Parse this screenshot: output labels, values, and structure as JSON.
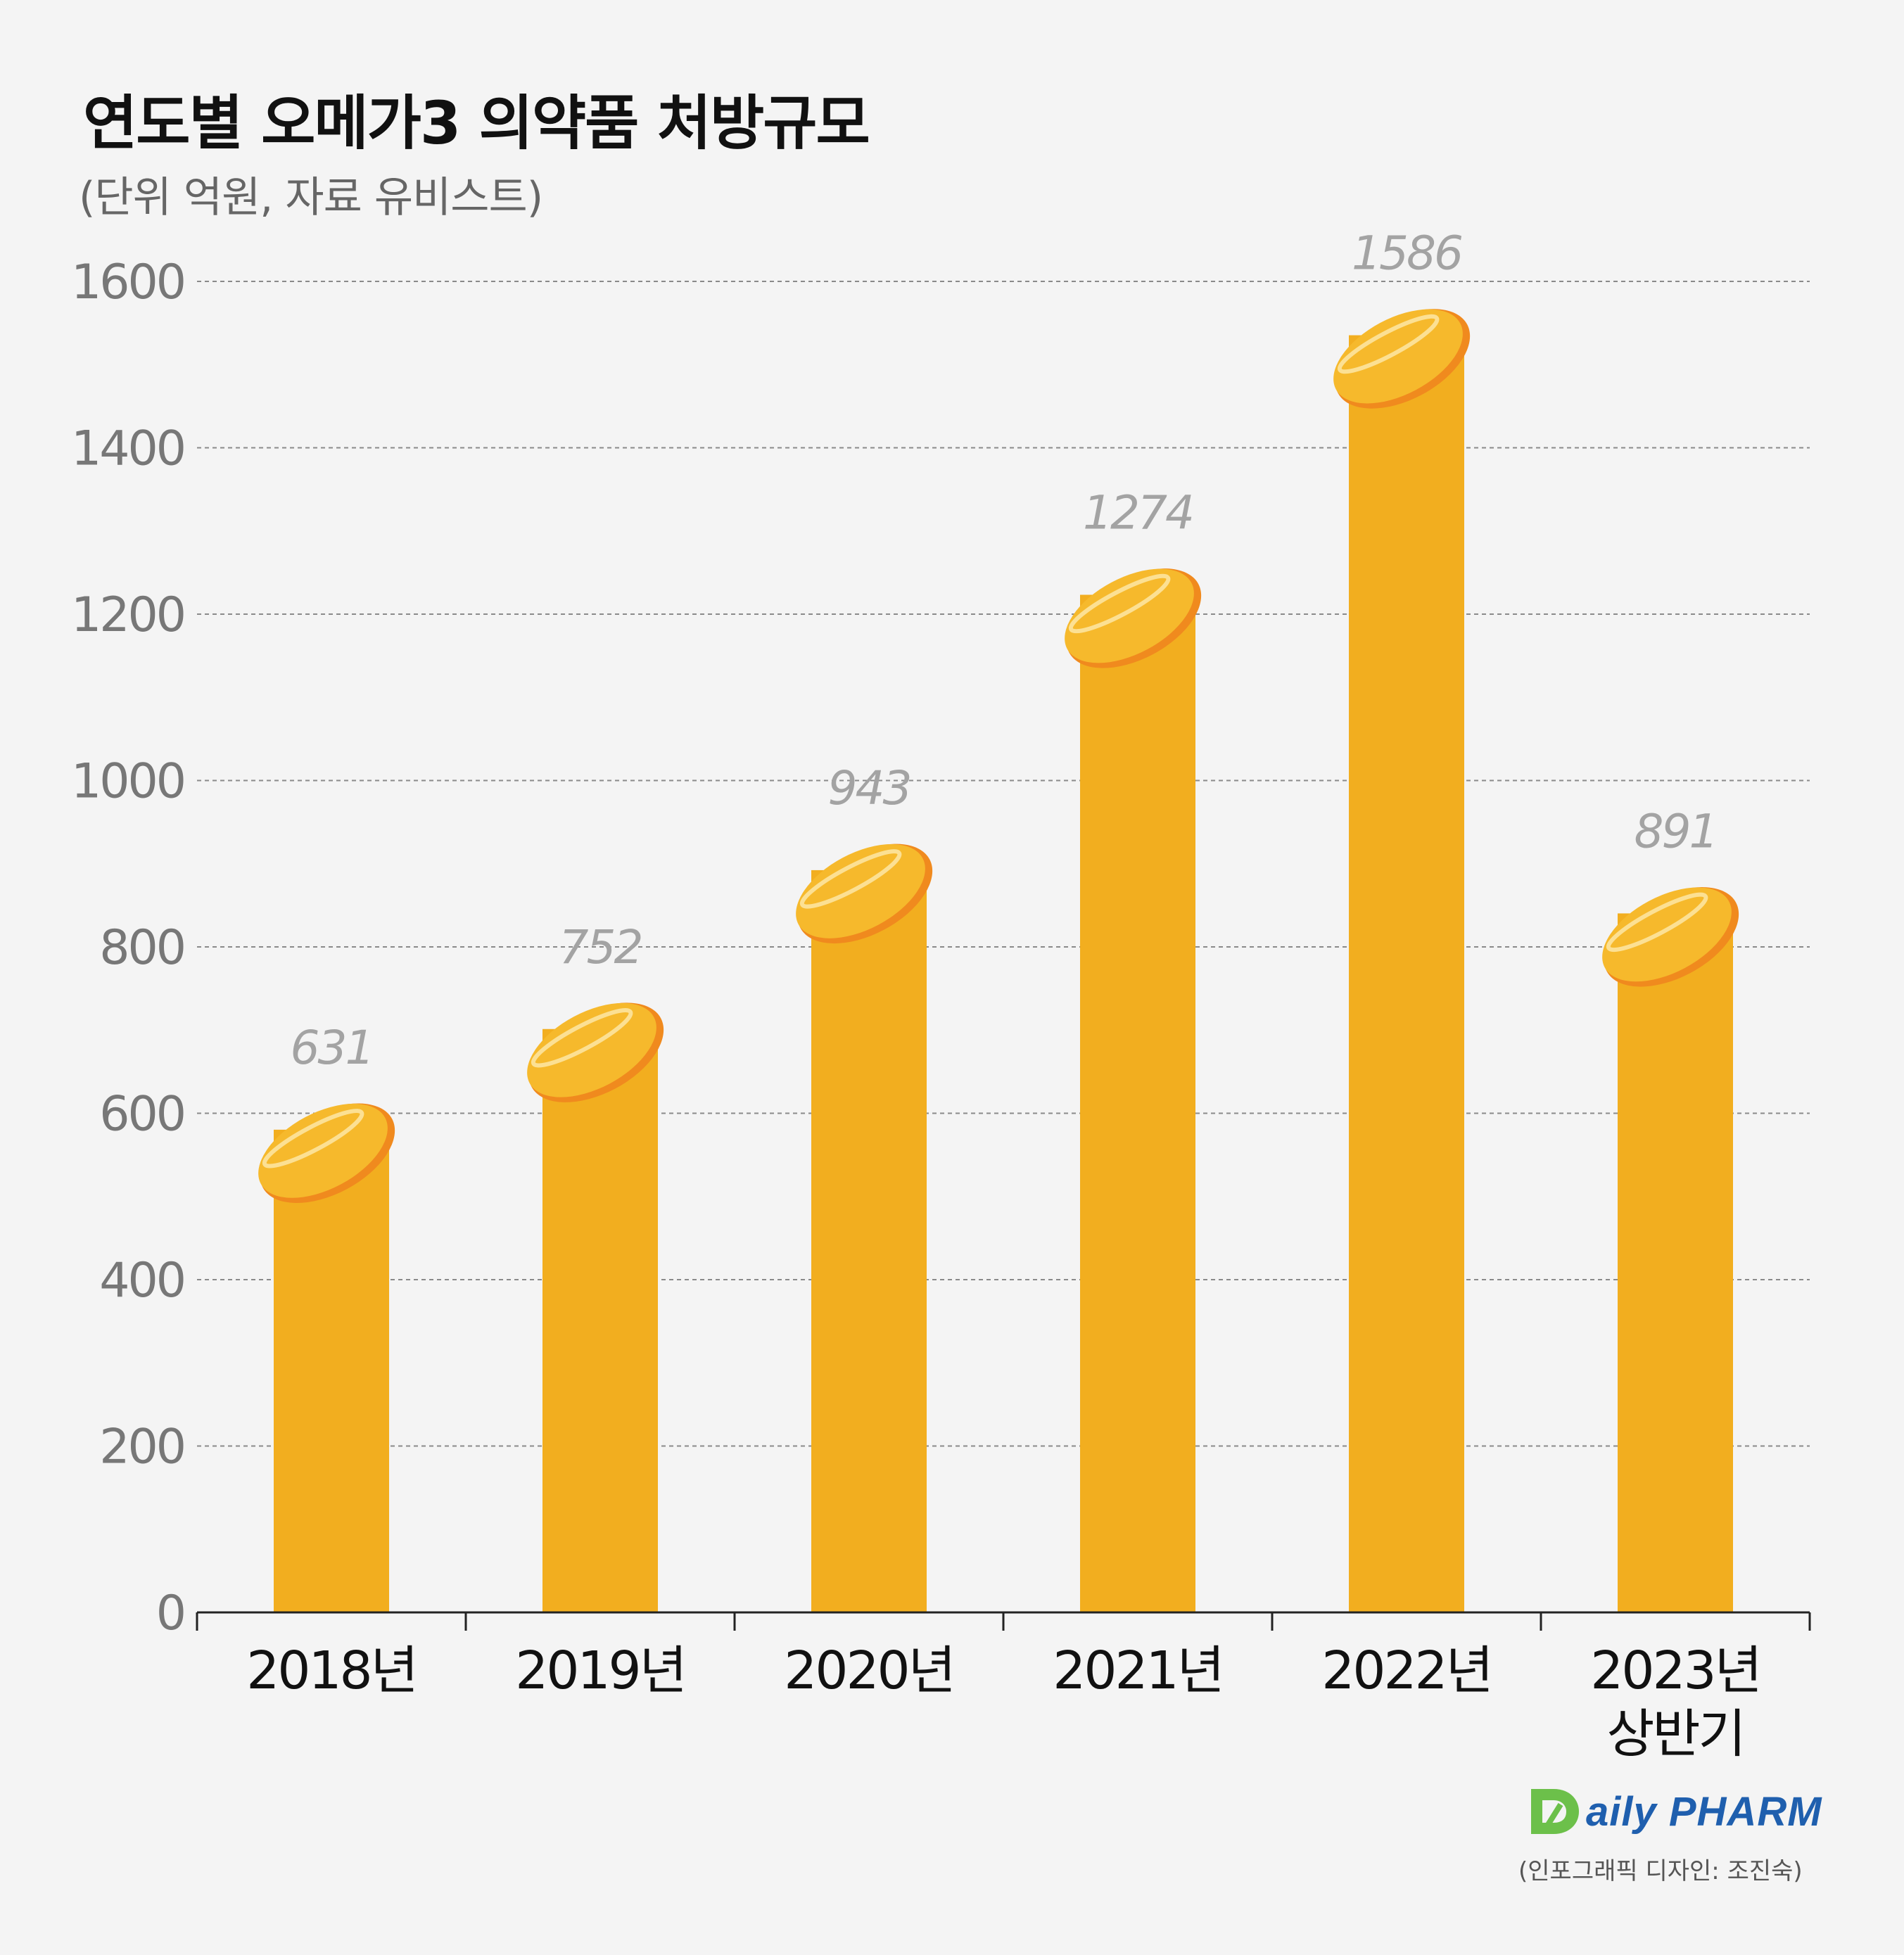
{
  "title": "연도별 오메가3 의약품 처방규모",
  "subtitle": "(단위 억원, 자료 유비스트)",
  "logo": {
    "text": "aily PHARM",
    "brand": "Daily PHARM"
  },
  "credit": "(인포그래픽 디자인: 조진숙)",
  "colors": {
    "bar": "#f2ae1f",
    "capsule": "#f6b92c",
    "capsule_rim": "#f08a1e",
    "capsule_highlight": "#fde6a6",
    "value_label": "#a3a3a3",
    "axis_label": "#777777",
    "grid": "#8a8a8a",
    "logo_green": "#6cc04a",
    "logo_blue": "#1f5fae"
  },
  "chart_data": {
    "type": "bar",
    "title": "연도별 오메가3 의약품 처방규모",
    "subtitle": "(단위 억원, 자료 유비스트)",
    "categories": [
      [
        "2018년"
      ],
      [
        "2019년"
      ],
      [
        "2020년"
      ],
      [
        "2021년"
      ],
      [
        "2022년"
      ],
      [
        "2023년",
        "상반기"
      ]
    ],
    "values": [
      631,
      752,
      943,
      1274,
      1586,
      891
    ],
    "yticks": [
      "0",
      "200",
      "400",
      "600",
      "800",
      "1000",
      "1200",
      "1400",
      "1600"
    ],
    "ylim": [
      0,
      1600
    ],
    "xlabel": "",
    "ylabel": "",
    "grid": true,
    "legend": "none"
  }
}
